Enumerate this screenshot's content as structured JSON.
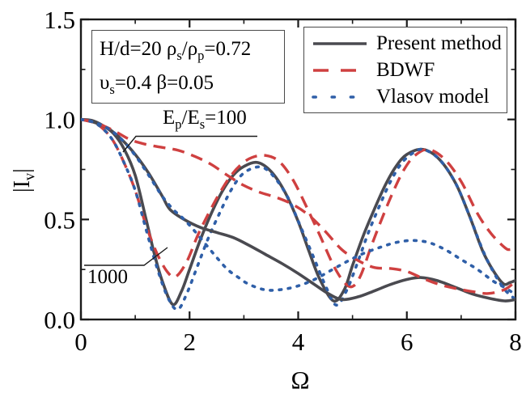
{
  "chart_data": {
    "type": "line",
    "title": "",
    "xlabel": "Ω",
    "ylabel": "|I_v|",
    "xlim": [
      0,
      8
    ],
    "ylim": [
      0,
      1.5
    ],
    "grid": false,
    "legend_position": "top-right",
    "x_major_ticks": [
      0,
      2,
      4,
      6,
      8
    ],
    "x_minor_ticks": [
      1,
      3,
      5,
      7
    ],
    "x_tick_labels": [
      "0",
      "2",
      "4",
      "6",
      "8"
    ],
    "y_major_ticks": [
      0,
      0.5,
      1.0,
      1.5
    ],
    "y_minor_ticks": [
      0.25,
      0.75,
      1.25
    ],
    "y_tick_labels": [
      "0.0",
      "0.5",
      "1.0",
      "1.5"
    ],
    "series": [
      {
        "name": "Present method",
        "group": "Ep/Es=1000",
        "style": "solid",
        "color": "#4a4a50",
        "points": [
          [
            0,
            1.0
          ],
          [
            0.2,
            0.995
          ],
          [
            0.4,
            0.97
          ],
          [
            0.6,
            0.93
          ],
          [
            0.8,
            0.85
          ],
          [
            1.0,
            0.72
          ],
          [
            1.2,
            0.5
          ],
          [
            1.35,
            0.33
          ],
          [
            1.5,
            0.19
          ],
          [
            1.69,
            0.075
          ],
          [
            1.85,
            0.14
          ],
          [
            2.0,
            0.25
          ],
          [
            2.2,
            0.4
          ],
          [
            2.4,
            0.53
          ],
          [
            2.6,
            0.64
          ],
          [
            2.8,
            0.72
          ],
          [
            3.0,
            0.765
          ],
          [
            3.25,
            0.785
          ],
          [
            3.5,
            0.74
          ],
          [
            3.75,
            0.64
          ],
          [
            4.0,
            0.49
          ],
          [
            4.2,
            0.34
          ],
          [
            4.4,
            0.2
          ],
          [
            4.65,
            0.093
          ],
          [
            4.85,
            0.15
          ],
          [
            5.0,
            0.27
          ],
          [
            5.2,
            0.42
          ],
          [
            5.4,
            0.55
          ],
          [
            5.6,
            0.67
          ],
          [
            5.8,
            0.765
          ],
          [
            6.0,
            0.825
          ],
          [
            6.3,
            0.85
          ],
          [
            6.6,
            0.8
          ],
          [
            6.9,
            0.68
          ],
          [
            7.15,
            0.52
          ],
          [
            7.4,
            0.34
          ],
          [
            7.6,
            0.24
          ],
          [
            7.78,
            0.178
          ],
          [
            7.9,
            0.185
          ],
          [
            8.0,
            0.195
          ]
        ]
      },
      {
        "name": "BDWF",
        "group": "Ep/Es=1000",
        "style": "dashed",
        "color": "#cf4040",
        "points": [
          [
            0,
            1.0
          ],
          [
            0.2,
            0.99
          ],
          [
            0.4,
            0.955
          ],
          [
            0.6,
            0.89
          ],
          [
            0.8,
            0.78
          ],
          [
            1.0,
            0.645
          ],
          [
            1.2,
            0.47
          ],
          [
            1.4,
            0.33
          ],
          [
            1.6,
            0.235
          ],
          [
            1.75,
            0.215
          ],
          [
            1.95,
            0.29
          ],
          [
            2.15,
            0.42
          ],
          [
            2.35,
            0.53
          ],
          [
            2.55,
            0.63
          ],
          [
            2.75,
            0.715
          ],
          [
            2.95,
            0.775
          ],
          [
            3.15,
            0.81
          ],
          [
            3.4,
            0.82
          ],
          [
            3.65,
            0.79
          ],
          [
            3.9,
            0.7
          ],
          [
            4.15,
            0.565
          ],
          [
            4.4,
            0.42
          ],
          [
            4.65,
            0.27
          ],
          [
            4.85,
            0.185
          ],
          [
            5.0,
            0.165
          ],
          [
            5.15,
            0.22
          ],
          [
            5.35,
            0.37
          ],
          [
            5.55,
            0.51
          ],
          [
            5.75,
            0.64
          ],
          [
            5.95,
            0.75
          ],
          [
            6.15,
            0.82
          ],
          [
            6.4,
            0.85
          ],
          [
            6.7,
            0.8
          ],
          [
            7.0,
            0.69
          ],
          [
            7.3,
            0.53
          ],
          [
            7.55,
            0.43
          ],
          [
            7.8,
            0.36
          ],
          [
            7.9,
            0.35
          ],
          [
            8.0,
            0.365
          ]
        ]
      },
      {
        "name": "Vlasov model",
        "group": "Ep/Es=1000",
        "style": "dotted",
        "color": "#2f5fa8",
        "points": [
          [
            0,
            1.0
          ],
          [
            0.2,
            0.99
          ],
          [
            0.4,
            0.955
          ],
          [
            0.6,
            0.89
          ],
          [
            0.8,
            0.78
          ],
          [
            1.0,
            0.645
          ],
          [
            1.2,
            0.45
          ],
          [
            1.4,
            0.26
          ],
          [
            1.6,
            0.11
          ],
          [
            1.78,
            0.05
          ],
          [
            1.95,
            0.13
          ],
          [
            2.15,
            0.27
          ],
          [
            2.35,
            0.41
          ],
          [
            2.55,
            0.53
          ],
          [
            2.75,
            0.64
          ],
          [
            2.95,
            0.72
          ],
          [
            3.15,
            0.755
          ],
          [
            3.35,
            0.76
          ],
          [
            3.55,
            0.715
          ],
          [
            3.8,
            0.615
          ],
          [
            4.05,
            0.46
          ],
          [
            4.3,
            0.3
          ],
          [
            4.5,
            0.17
          ],
          [
            4.7,
            0.072
          ],
          [
            4.9,
            0.15
          ],
          [
            5.1,
            0.29
          ],
          [
            5.3,
            0.44
          ],
          [
            5.5,
            0.57
          ],
          [
            5.7,
            0.69
          ],
          [
            5.9,
            0.78
          ],
          [
            6.1,
            0.83
          ],
          [
            6.3,
            0.85
          ],
          [
            6.6,
            0.8
          ],
          [
            6.9,
            0.68
          ],
          [
            7.15,
            0.52
          ],
          [
            7.4,
            0.345
          ],
          [
            7.6,
            0.235
          ],
          [
            7.8,
            0.15
          ],
          [
            8.0,
            0.1
          ]
        ]
      },
      {
        "name": "Present method",
        "group": "Ep/Es=100",
        "style": "solid",
        "color": "#4a4a50",
        "points": [
          [
            0,
            1.0
          ],
          [
            0.25,
            0.985
          ],
          [
            0.5,
            0.955
          ],
          [
            0.75,
            0.9
          ],
          [
            1.0,
            0.825
          ],
          [
            1.25,
            0.73
          ],
          [
            1.5,
            0.615
          ],
          [
            1.64,
            0.55
          ],
          [
            1.9,
            0.5
          ],
          [
            2.2,
            0.46
          ],
          [
            2.5,
            0.435
          ],
          [
            2.8,
            0.41
          ],
          [
            3.1,
            0.37
          ],
          [
            3.4,
            0.325
          ],
          [
            3.7,
            0.28
          ],
          [
            4.0,
            0.23
          ],
          [
            4.3,
            0.175
          ],
          [
            4.55,
            0.13
          ],
          [
            4.8,
            0.1
          ],
          [
            5.1,
            0.113
          ],
          [
            5.4,
            0.143
          ],
          [
            5.7,
            0.175
          ],
          [
            6.0,
            0.2
          ],
          [
            6.25,
            0.21
          ],
          [
            6.55,
            0.195
          ],
          [
            6.9,
            0.16
          ],
          [
            7.2,
            0.128
          ],
          [
            7.5,
            0.107
          ],
          [
            7.8,
            0.093
          ],
          [
            8.0,
            0.1
          ]
        ]
      },
      {
        "name": "BDWF",
        "group": "Ep/Es=100",
        "style": "dashed",
        "color": "#cf4040",
        "points": [
          [
            0,
            1.0
          ],
          [
            0.3,
            0.98
          ],
          [
            0.6,
            0.945
          ],
          [
            0.9,
            0.9
          ],
          [
            1.2,
            0.875
          ],
          [
            1.5,
            0.86
          ],
          [
            1.8,
            0.845
          ],
          [
            2.1,
            0.815
          ],
          [
            2.4,
            0.775
          ],
          [
            2.7,
            0.72
          ],
          [
            3.0,
            0.67
          ],
          [
            3.3,
            0.635
          ],
          [
            3.6,
            0.61
          ],
          [
            3.9,
            0.575
          ],
          [
            4.2,
            0.52
          ],
          [
            4.5,
            0.44
          ],
          [
            4.8,
            0.35
          ],
          [
            5.1,
            0.295
          ],
          [
            5.4,
            0.26
          ],
          [
            5.7,
            0.255
          ],
          [
            6.0,
            0.24
          ],
          [
            6.3,
            0.205
          ],
          [
            6.6,
            0.175
          ],
          [
            6.9,
            0.155
          ],
          [
            7.2,
            0.14
          ],
          [
            7.5,
            0.13
          ],
          [
            7.8,
            0.15
          ],
          [
            8.0,
            0.19
          ]
        ]
      },
      {
        "name": "Vlasov model",
        "group": "Ep/Es=100",
        "style": "dotted",
        "color": "#2f5fa8",
        "points": [
          [
            0,
            1.0
          ],
          [
            0.25,
            0.985
          ],
          [
            0.5,
            0.955
          ],
          [
            0.75,
            0.9
          ],
          [
            1.0,
            0.82
          ],
          [
            1.25,
            0.72
          ],
          [
            1.5,
            0.615
          ],
          [
            1.7,
            0.55
          ],
          [
            1.9,
            0.5
          ],
          [
            2.1,
            0.44
          ],
          [
            2.3,
            0.375
          ],
          [
            2.5,
            0.31
          ],
          [
            2.7,
            0.25
          ],
          [
            2.9,
            0.21
          ],
          [
            3.1,
            0.175
          ],
          [
            3.4,
            0.148
          ],
          [
            3.7,
            0.15
          ],
          [
            4.0,
            0.168
          ],
          [
            4.3,
            0.2
          ],
          [
            4.6,
            0.245
          ],
          [
            4.9,
            0.29
          ],
          [
            5.2,
            0.33
          ],
          [
            5.5,
            0.36
          ],
          [
            5.8,
            0.385
          ],
          [
            6.1,
            0.395
          ],
          [
            6.4,
            0.385
          ],
          [
            6.7,
            0.35
          ],
          [
            7.0,
            0.3
          ],
          [
            7.3,
            0.25
          ],
          [
            7.6,
            0.19
          ],
          [
            7.8,
            0.16
          ],
          [
            8.0,
            0.125
          ]
        ]
      }
    ]
  },
  "legend": {
    "items": [
      {
        "label": "Present method",
        "style": "solid",
        "color": "#4a4a50"
      },
      {
        "label": "BDWF",
        "style": "dashed",
        "color": "#cf4040"
      },
      {
        "label": "Vlasov model",
        "style": "dotted",
        "color": "#2f5fa8"
      }
    ]
  },
  "annotation_box": {
    "line1": [
      {
        "t": "H/d=20  ρ"
      },
      {
        "s": "s"
      },
      {
        "t": "/ρ"
      },
      {
        "s": "p"
      },
      {
        "t": "=0.72"
      }
    ],
    "line2": [
      {
        "t": "υ"
      },
      {
        "s": "s"
      },
      {
        "t": "=0.4   β=0.05"
      }
    ]
  },
  "curve_labels": {
    "ep_ratio_100": [
      {
        "t": "E"
      },
      {
        "s": "p"
      },
      {
        "t": "/E"
      },
      {
        "s": "s"
      },
      {
        "t": "=100"
      }
    ],
    "ep_ratio_1000": "1000"
  },
  "axis": {
    "x_title": "Ω",
    "y_title": [
      {
        "t": "|I"
      },
      {
        "s": "v"
      },
      {
        "t": "|"
      }
    ]
  },
  "colors": {
    "present_method": "#4a4a50",
    "bdwf": "#cf4040",
    "vlasov": "#2f5fa8",
    "axis": "#1a1a1a"
  }
}
